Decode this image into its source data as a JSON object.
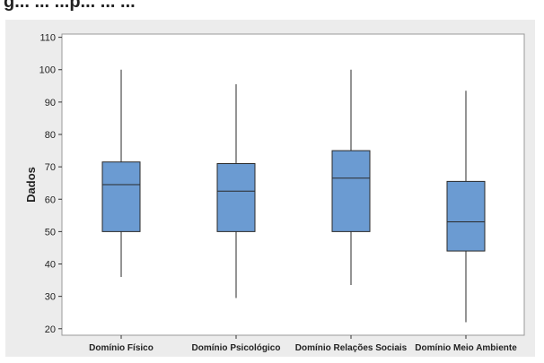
{
  "page": {
    "caption_fragment": "g... ... ...p... ... ..."
  },
  "chart_data": {
    "type": "box",
    "title": "",
    "xlabel": "",
    "ylabel": "Dados",
    "ylim": [
      18,
      111
    ],
    "yticks": [
      20,
      30,
      40,
      50,
      60,
      70,
      80,
      90,
      100,
      110
    ],
    "grid": false,
    "colors": {
      "box_fill": "#6b9bd2",
      "box_stroke": "#2a2a2a",
      "whisker": "#2a2a2a",
      "panel_bg": "#ececec",
      "plot_bg": "#ffffff"
    },
    "categories": [
      "Domínio Físico",
      "Domínio Psicológico",
      "Domínio Relações Sociais",
      "Domínio Meio Ambiente"
    ],
    "boxes": [
      {
        "category": "Domínio Físico",
        "min": 36,
        "q1": 50,
        "median": 64.5,
        "q3": 71.5,
        "max": 100
      },
      {
        "category": "Domínio Psicológico",
        "min": 29.5,
        "q1": 50,
        "median": 62.5,
        "q3": 71,
        "max": 95.5
      },
      {
        "category": "Domínio Relações Sociais",
        "min": 33.5,
        "q1": 50,
        "median": 66.5,
        "q3": 75,
        "max": 100
      },
      {
        "category": "Domínio Meio Ambiente",
        "min": 22,
        "q1": 44,
        "median": 53,
        "q3": 65.5,
        "max": 93.5
      }
    ]
  }
}
